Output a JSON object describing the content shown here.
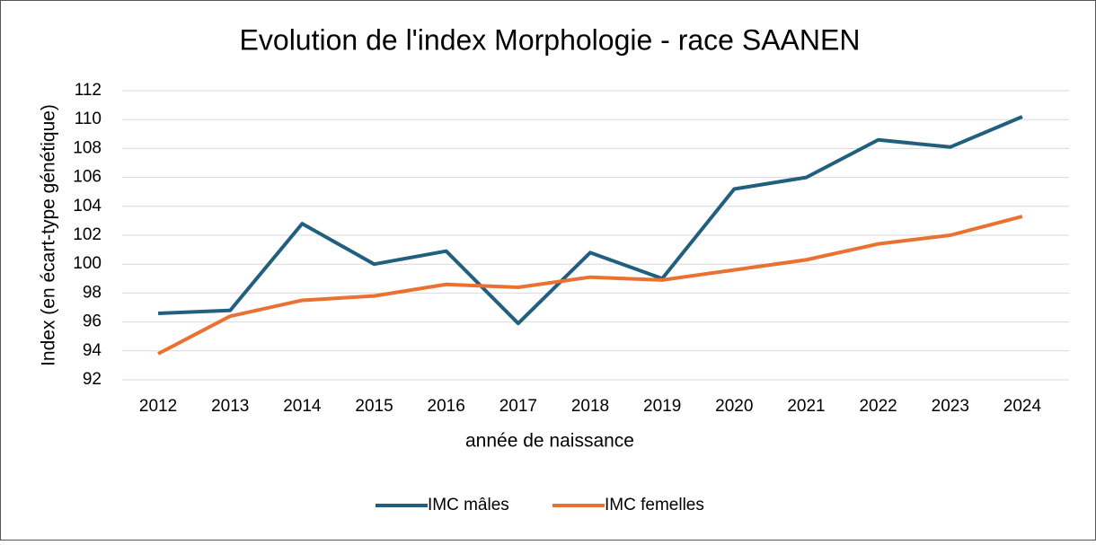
{
  "chart_data": {
    "type": "line",
    "title": "Evolution de l'index Morphologie - race SAANEN",
    "x_label": "année de naissance",
    "y_label": "Index (en écart-type génétique)",
    "categories": [
      "2012",
      "2013",
      "2014",
      "2015",
      "2016",
      "2017",
      "2018",
      "2019",
      "2020",
      "2021",
      "2022",
      "2023",
      "2024"
    ],
    "series": [
      {
        "name": "IMC mâles",
        "color": "#215f7f",
        "values": [
          96.6,
          96.8,
          102.8,
          100.0,
          100.9,
          95.9,
          100.8,
          99.0,
          105.2,
          106.0,
          108.6,
          108.1,
          110.2
        ]
      },
      {
        "name": "IMC femelles",
        "color": "#e97132",
        "values": [
          93.8,
          96.4,
          97.5,
          97.8,
          98.6,
          98.4,
          99.1,
          98.9,
          99.6,
          100.3,
          101.4,
          102.0,
          103.3
        ]
      }
    ],
    "ylim": [
      92,
      112
    ],
    "yticks": [
      92,
      94,
      96,
      98,
      100,
      102,
      104,
      106,
      108,
      110,
      112
    ],
    "grid": true,
    "legend": "bottom"
  }
}
